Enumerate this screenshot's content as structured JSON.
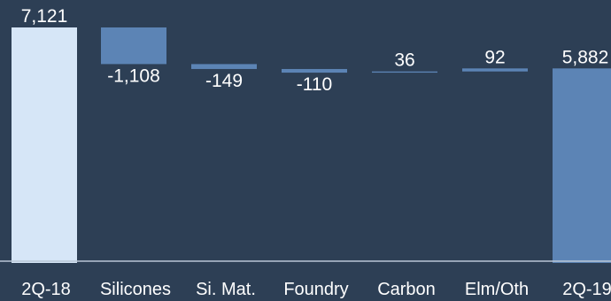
{
  "chart_data": {
    "type": "bar",
    "subtype": "waterfall",
    "categories": [
      "2Q-18",
      "Silicones",
      "Si. Mat.",
      "Foundry",
      "Carbon",
      "Elm/Oth",
      "2Q-19"
    ],
    "values": [
      7121,
      -1108,
      -149,
      -110,
      36,
      92,
      5882
    ],
    "bar_roles": [
      "total",
      "change",
      "change",
      "change",
      "change",
      "change",
      "total"
    ],
    "data_labels": [
      "7,121",
      "-1,108",
      "-149",
      "-110",
      "36",
      "92",
      "5,882"
    ],
    "ylim": [
      0,
      7121
    ],
    "grid": false,
    "legend": "none"
  },
  "colors": {
    "background": "#2d3f55",
    "start_bar": "#d6e6f7",
    "change_bar": "#5c84b5",
    "end_bar": "#5c84b5",
    "axis": "#b9c6d6",
    "text": "#ffffff"
  }
}
